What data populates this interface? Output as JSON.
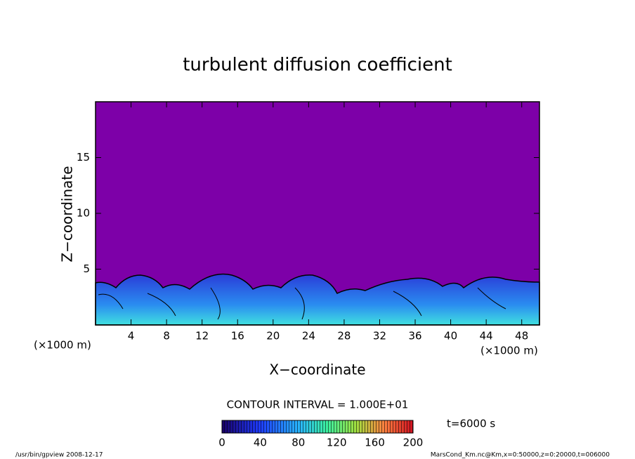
{
  "chart_data": {
    "type": "contour",
    "title": "turbulent diffusion coefficient",
    "x_label": "X−coordinate",
    "y_label": "Z−coordinate",
    "x_unit": "(×1000 m)",
    "xlim": [
      0,
      50
    ],
    "xticks": [
      4,
      8,
      12,
      16,
      20,
      24,
      28,
      32,
      36,
      40,
      44,
      48
    ],
    "ylim": [
      0,
      20
    ],
    "yticks": [
      5,
      10,
      15
    ],
    "contour_interval": "CONTOUR INTERVAL = 1.000E+01",
    "time_label": "t=6000 s",
    "clim": [
      0,
      200
    ],
    "colorbar_ticks": [
      0,
      40,
      80,
      120,
      160,
      200
    ],
    "footer_left": "/usr/bin/gpview  2008-12-17",
    "footer_right": "MarsCond_Km.nc@Km,x=0:50000,z=0:20000,t=006000"
  }
}
